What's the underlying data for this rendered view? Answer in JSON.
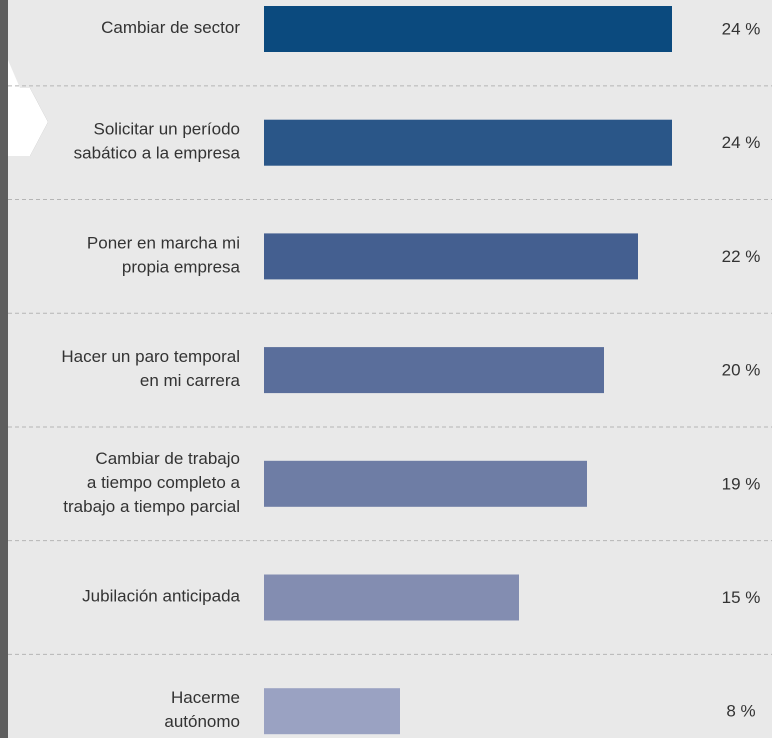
{
  "chart_data": {
    "type": "bar",
    "categories": [
      [
        "Cambiar de sector"
      ],
      [
        "Solicitar un período",
        "sabático a la empresa"
      ],
      [
        "Poner en marcha mi",
        "propia empresa"
      ],
      [
        "Hacer un paro temporal",
        "en mi carrera"
      ],
      [
        "Cambiar de trabajo",
        "a tiempo completo a",
        "trabajo a tiempo parcial"
      ],
      [
        "Jubilación anticipada"
      ],
      [
        "Hacerme",
        "autónomo"
      ]
    ],
    "values": [
      24,
      24,
      22,
      20,
      19,
      15,
      8
    ],
    "value_labels": [
      "24 %",
      "24 %",
      "22 %",
      "20 %",
      "19 %",
      "15 %",
      "8 %"
    ],
    "colors": [
      "#0b4a7e",
      "#2a5688",
      "#445f90",
      "#5a6e9b",
      "#6e7da5",
      "#838db1",
      "#9aa2c2"
    ]
  }
}
